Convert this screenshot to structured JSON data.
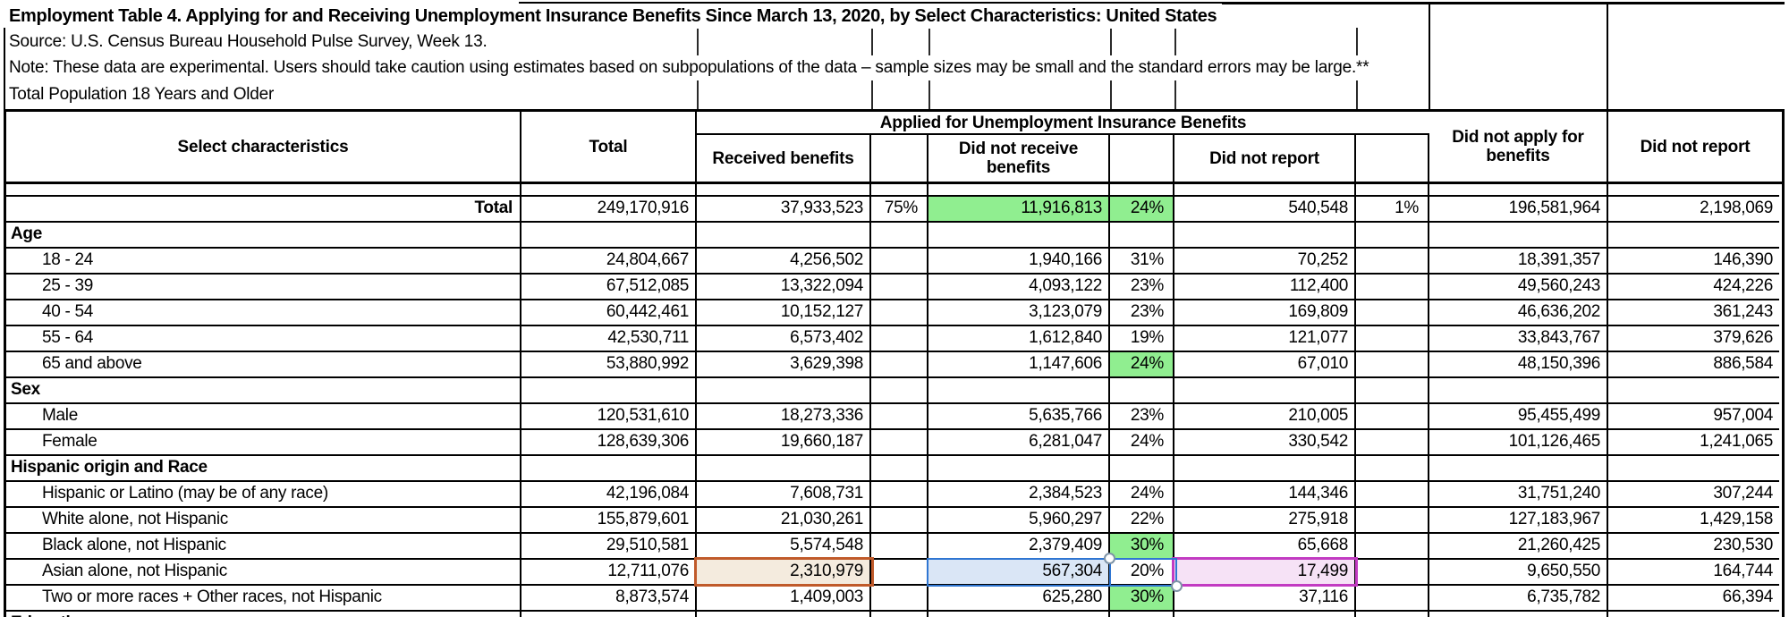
{
  "meta": {
    "title": "Employment Table 4. Applying for and Receiving Unemployment Insurance Benefits Since March 13, 2020, by Select Characteristics: United States",
    "source": "Source: U.S. Census Bureau Household Pulse Survey, Week 13.",
    "note": "Note: These data are experimental. Users should take caution using estimates based on subpopulations of the data – sample sizes may be small and the standard errors may be large.**",
    "population": "Total Population 18 Years and Older"
  },
  "table": {
    "header": {
      "select_characteristics": "Select characteristics",
      "total": "Total",
      "applied_span": "Applied for Unemployment Insurance Benefits",
      "received_benefits": "Received benefits",
      "did_not_receive_benefits": "Did not receive benefits",
      "did_not_report": "Did not report",
      "did_not_apply": "Did not apply for benefits",
      "did_not_report_2": "Did not report"
    },
    "rows": [
      {
        "kind": "spacer",
        "cells": [
          "",
          "",
          "",
          "",
          "",
          "",
          "",
          "",
          "",
          ""
        ]
      },
      {
        "kind": "total",
        "cells": [
          "Total",
          "249,170,916",
          "37,933,523",
          "75%",
          "11,916,813",
          "24%",
          "540,548",
          "1%",
          "196,581,964",
          "2,198,069"
        ]
      },
      {
        "kind": "section",
        "cells": [
          "Age",
          "",
          "",
          "",
          "",
          "",
          "",
          "",
          "",
          ""
        ]
      },
      {
        "kind": "data",
        "cells": [
          "18 - 24",
          "24,804,667",
          "4,256,502",
          "",
          "1,940,166",
          "31%",
          "70,252",
          "",
          "18,391,357",
          "146,390"
        ]
      },
      {
        "kind": "data",
        "cells": [
          "25 - 39",
          "67,512,085",
          "13,322,094",
          "",
          "4,093,122",
          "23%",
          "112,400",
          "",
          "49,560,243",
          "424,226"
        ]
      },
      {
        "kind": "data",
        "cells": [
          "40 - 54",
          "60,442,461",
          "10,152,127",
          "",
          "3,123,079",
          "23%",
          "169,809",
          "",
          "46,636,202",
          "361,243"
        ]
      },
      {
        "kind": "data",
        "cells": [
          "55 - 64",
          "42,530,711",
          "6,573,402",
          "",
          "1,612,840",
          "19%",
          "121,077",
          "",
          "33,843,767",
          "379,626"
        ]
      },
      {
        "kind": "data",
        "cells": [
          "65 and above",
          "53,880,992",
          "3,629,398",
          "",
          "1,147,606",
          "24%",
          "67,010",
          "",
          "48,150,396",
          "886,584"
        ]
      },
      {
        "kind": "section",
        "cells": [
          "Sex",
          "",
          "",
          "",
          "",
          "",
          "",
          "",
          "",
          ""
        ]
      },
      {
        "kind": "data",
        "cells": [
          "Male",
          "120,531,610",
          "18,273,336",
          "",
          "5,635,766",
          "23%",
          "210,005",
          "",
          "95,455,499",
          "957,004"
        ]
      },
      {
        "kind": "data",
        "cells": [
          "Female",
          "128,639,306",
          "19,660,187",
          "",
          "6,281,047",
          "24%",
          "330,542",
          "",
          "101,126,465",
          "1,241,065"
        ]
      },
      {
        "kind": "section",
        "cells": [
          "Hispanic origin and Race",
          "",
          "",
          "",
          "",
          "",
          "",
          "",
          "",
          ""
        ]
      },
      {
        "kind": "data",
        "cells": [
          "Hispanic or Latino (may be of any race)",
          "42,196,084",
          "7,608,731",
          "",
          "2,384,523",
          "24%",
          "144,346",
          "",
          "31,751,240",
          "307,244"
        ]
      },
      {
        "kind": "data",
        "cells": [
          "White alone, not Hispanic",
          "155,879,601",
          "21,030,261",
          "",
          "5,960,297",
          "22%",
          "275,918",
          "",
          "127,183,967",
          "1,429,158"
        ]
      },
      {
        "kind": "data",
        "cells": [
          "Black alone, not Hispanic",
          "29,510,581",
          "5,574,548",
          "",
          "2,379,409",
          "30%",
          "65,668",
          "",
          "21,260,425",
          "230,530"
        ]
      },
      {
        "kind": "data",
        "cells": [
          "Asian alone, not Hispanic",
          "12,711,076",
          "2,310,979",
          "",
          "567,304",
          "20%",
          "17,499",
          "",
          "9,650,550",
          "164,744"
        ]
      },
      {
        "kind": "data",
        "cells": [
          "Two or more races + Other races, not Hispanic",
          "8,873,574",
          "1,409,003",
          "",
          "625,280",
          "30%",
          "37,116",
          "",
          "6,735,782",
          "66,394"
        ]
      },
      {
        "kind": "section",
        "cells": [
          "Education",
          "",
          "",
          "",
          "",
          "",
          "",
          "",
          "",
          ""
        ]
      }
    ],
    "highlights": [
      {
        "row": 1,
        "col": 4,
        "style": "hl-green"
      },
      {
        "row": 1,
        "col": 5,
        "style": "hl-green"
      },
      {
        "row": 7,
        "col": 5,
        "style": "hl-green"
      },
      {
        "row": 14,
        "col": 5,
        "style": "hl-green"
      },
      {
        "row": 15,
        "col": 2,
        "style": "hl-orange"
      },
      {
        "row": 15,
        "col": 4,
        "style": "hl-blue"
      },
      {
        "row": 15,
        "col": 6,
        "style": "hl-pink"
      },
      {
        "row": 16,
        "col": 5,
        "style": "hl-green"
      }
    ],
    "highlight_colors": {
      "green_fill": "#90EE90",
      "orange_border": "#C05A2A",
      "orange_fill": "#F4EBDE",
      "blue_border": "#2F76D2",
      "blue_fill": "#DAE6F6",
      "magenta_border": "#C23BC2",
      "pink_fill": "#F6E2F6"
    }
  }
}
